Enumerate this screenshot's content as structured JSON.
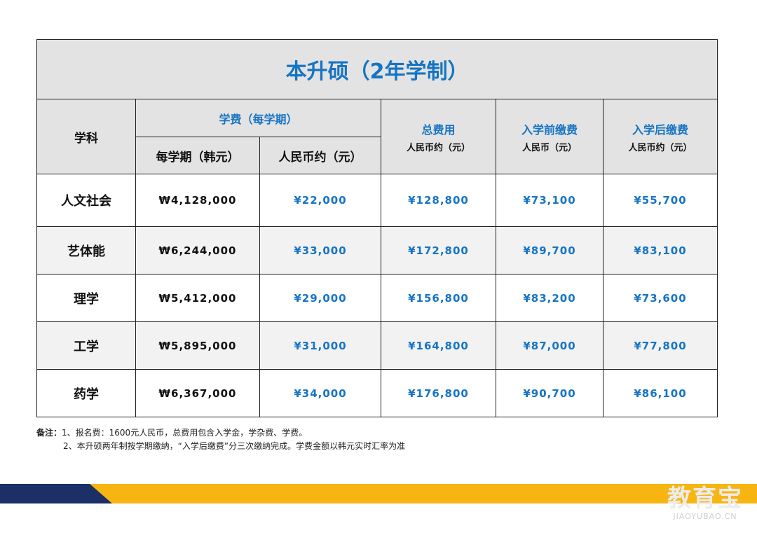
{
  "table": {
    "title": "本升硕（2年学制）",
    "headers": {
      "subject": "学科",
      "tuition_group": "学费（每学期）",
      "tuition_krw": "每学期（韩元）",
      "tuition_cny": "人民币约（元）",
      "total": "总费用",
      "total_unit": "人民币约（元）",
      "before": "入学前缴费",
      "before_unit": "人民币（元）",
      "after": "入学后缴费",
      "after_unit": "人民币约（元）"
    },
    "rows": [
      {
        "subject": "人文社会",
        "krw": "₩4,128,000",
        "cny": "¥22,000",
        "total": "¥128,800",
        "before": "¥73,100",
        "after": "¥55,700"
      },
      {
        "subject": "艺体能",
        "krw": "₩6,244,000",
        "cny": "¥33,000",
        "total": "¥172,800",
        "before": "¥89,700",
        "after": "¥83,100"
      },
      {
        "subject": "理学",
        "krw": "₩5,412,000",
        "cny": "¥29,000",
        "total": "¥156,800",
        "before": "¥83,200",
        "after": "¥73,600"
      },
      {
        "subject": "工学",
        "krw": "₩5,895,000",
        "cny": "¥31,000",
        "total": "¥164,800",
        "before": "¥87,000",
        "after": "¥77,800"
      },
      {
        "subject": "药学",
        "krw": "₩6,367,000",
        "cny": "¥34,000",
        "total": "¥176,800",
        "before": "¥90,700",
        "after": "¥86,100"
      }
    ]
  },
  "notes": {
    "label": "备注：",
    "line1": "1、报名费：1600元人民币，总费用包含入学金，学杂费、学费。",
    "line2": "2、本升硕两年制按学期缴纳，“入学后缴费”分三次缴纳完成。学费金额以韩元实时汇率为准"
  },
  "logo": {
    "text": "教育宝",
    "sub": "JIAOYUBAO.CN"
  },
  "colors": {
    "accent_blue": "#1674c4",
    "header_gray": "#e3e3e3",
    "navy": "#1c2f66",
    "yellow": "#f7b512"
  }
}
